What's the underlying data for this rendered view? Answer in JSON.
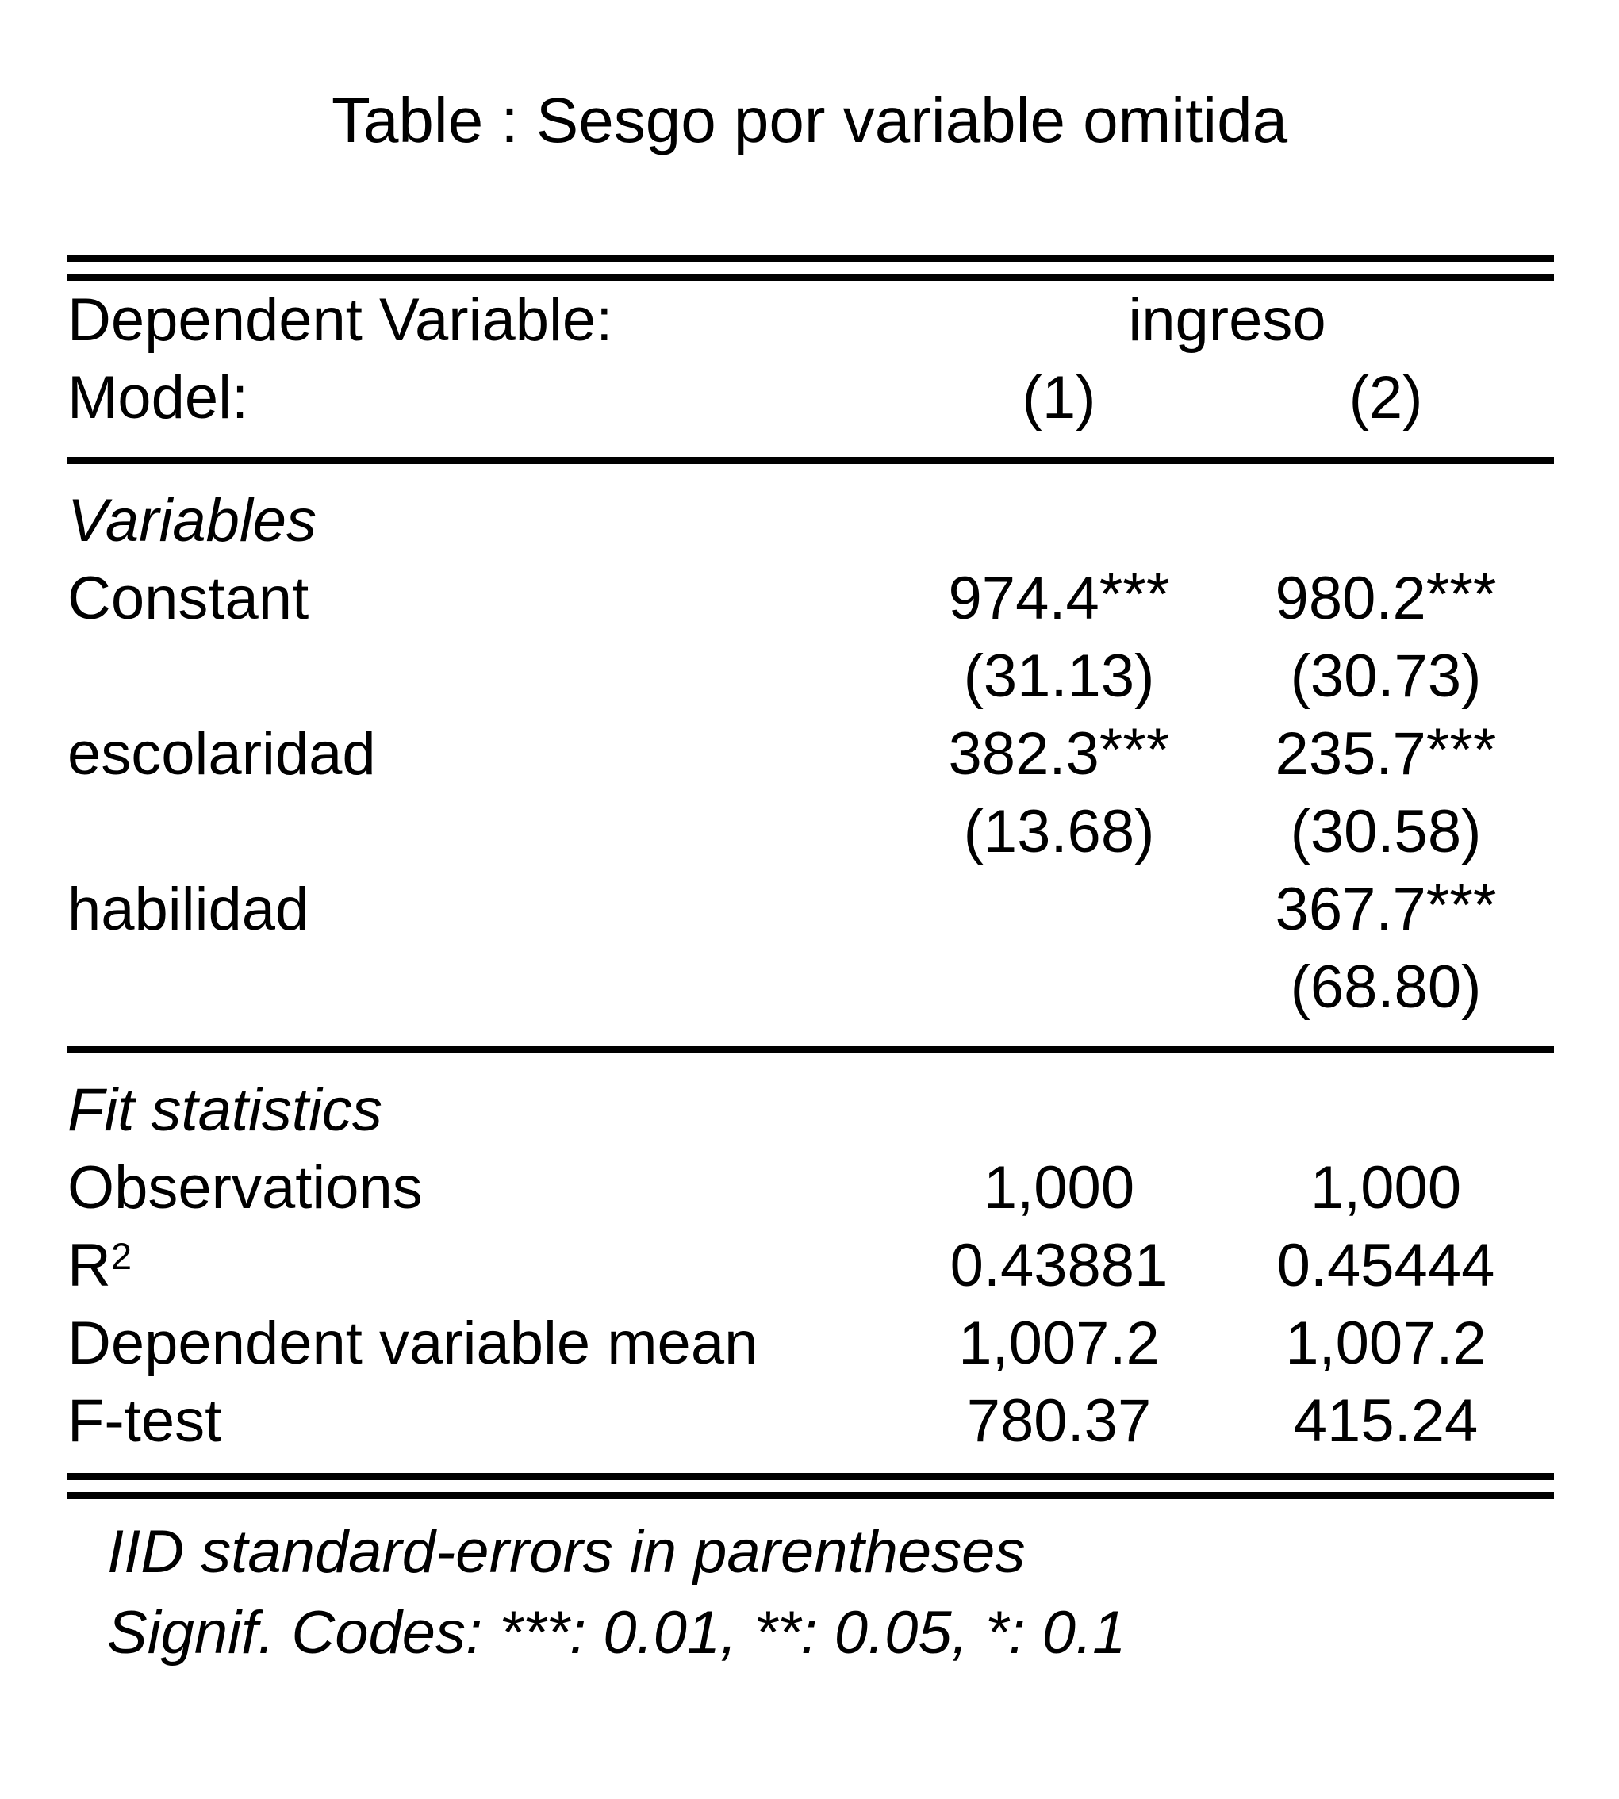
{
  "title": "Table : Sesgo por variable omitida",
  "header": {
    "dep_var_label": "Dependent Variable:",
    "dep_var_value": "ingreso",
    "model_label": "Model:",
    "models": [
      "(1)",
      "(2)"
    ]
  },
  "variables": {
    "heading": "Variables",
    "rows": [
      {
        "label": "Constant",
        "m1_est": "974.4",
        "m1_stars": "***",
        "m1_se": "(31.13)",
        "m2_est": "980.2",
        "m2_stars": "***",
        "m2_se": "(30.73)"
      },
      {
        "label": "escolaridad",
        "m1_est": "382.3",
        "m1_stars": "***",
        "m1_se": "(13.68)",
        "m2_est": "235.7",
        "m2_stars": "***",
        "m2_se": "(30.58)"
      },
      {
        "label": "habilidad",
        "m1_est": "",
        "m1_stars": "",
        "m1_se": "",
        "m2_est": "367.7",
        "m2_stars": "***",
        "m2_se": "(68.80)"
      }
    ]
  },
  "fit": {
    "heading": "Fit statistics",
    "rows": [
      {
        "label": "Observations",
        "m1": "1,000",
        "m2": "1,000"
      },
      {
        "label_base": "R",
        "label_sup": "2",
        "m1": "0.43881",
        "m2": "0.45444"
      },
      {
        "label": "Dependent variable mean",
        "m1": "1,007.2",
        "m2": "1,007.2"
      },
      {
        "label": "F-test",
        "m1": "780.37",
        "m2": "415.24"
      }
    ]
  },
  "footer": {
    "note_se": "IID standard-errors in parentheses",
    "note_signif": "Signif. Codes: ***: 0.01, **: 0.05, *: 0.1"
  }
}
